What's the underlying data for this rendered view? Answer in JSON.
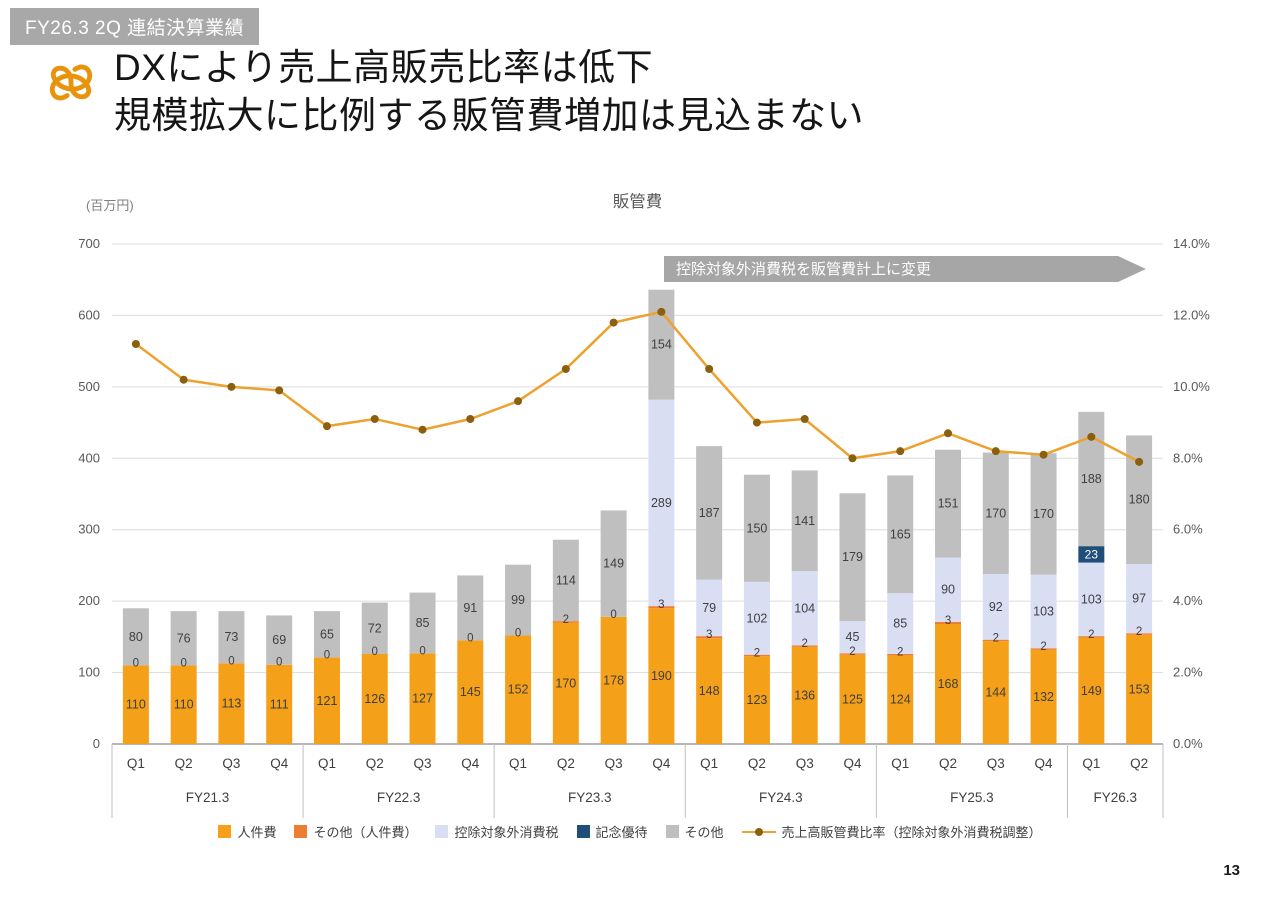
{
  "page": {
    "badge": "FY26.3 2Q 連結決算業績",
    "title_line1": "DXにより売上高販売比率は低下",
    "title_line2": "規模拡大に比例する販管費増加は見込まない",
    "page_number": "13"
  },
  "colors": {
    "hr": "#F5A019",
    "hr_other": "#ED7D31",
    "tax": "#D9DEF3",
    "gift": "#1F4E79",
    "other": "#BFBFBF",
    "line": "#EDA12F",
    "marker": "#8A5F0E",
    "annotation_bg": "#A6A6A6",
    "grid": "#DCDCDC",
    "axis_text": "#595959",
    "label_text": "#3F3F3F",
    "badge_bg": "#A8A8A8",
    "logo": "#E8930C"
  },
  "chart_data": {
    "type": "bar",
    "subtype": "stacked-bar-with-line",
    "title": "販管費",
    "unit_label": "(百万円)",
    "annotation": "控除対象外消費税を販管費計上に変更",
    "left_axis": {
      "label": "(百万円)",
      "min": 0,
      "max": 700,
      "step": 100,
      "ticks": [
        0,
        100,
        200,
        300,
        400,
        500,
        600,
        700
      ]
    },
    "right_axis": {
      "min": 0,
      "max": 14,
      "step": 2,
      "ticks": [
        "0.0%",
        "2.0%",
        "4.0%",
        "6.0%",
        "8.0%",
        "10.0%",
        "12.0%",
        "14.0%"
      ]
    },
    "groups": [
      "FY21.3",
      "FY22.3",
      "FY23.3",
      "FY24.3",
      "FY25.3",
      "FY26.3"
    ],
    "legend": [
      {
        "label": "人件費",
        "type": "swatch",
        "color": "#F5A019"
      },
      {
        "label": "その他（人件費）",
        "type": "swatch",
        "color": "#ED7D31"
      },
      {
        "label": "控除対象外消費税",
        "type": "swatch",
        "color": "#D9DEF3"
      },
      {
        "label": "記念優待",
        "type": "swatch",
        "color": "#1F4E79"
      },
      {
        "label": "その他",
        "type": "swatch",
        "color": "#BFBFBF"
      },
      {
        "label": "売上高販管費比率（控除対象外消費税調整）",
        "type": "line",
        "color": "#EDA12F",
        "marker": "#8A5F0E"
      }
    ],
    "bars": [
      {
        "group": "FY21.3",
        "q": "Q1",
        "hr": 110,
        "hr_other": 0,
        "tax": 0,
        "gift": 0,
        "other": 80,
        "small": "0"
      },
      {
        "group": "FY21.3",
        "q": "Q2",
        "hr": 110,
        "hr_other": 0,
        "tax": 0,
        "gift": 0,
        "other": 76,
        "small": "0"
      },
      {
        "group": "FY21.3",
        "q": "Q3",
        "hr": 113,
        "hr_other": 0,
        "tax": 0,
        "gift": 0,
        "other": 73,
        "small": "0"
      },
      {
        "group": "FY21.3",
        "q": "Q4",
        "hr": 111,
        "hr_other": 0,
        "tax": 0,
        "gift": 0,
        "other": 69,
        "small": "0"
      },
      {
        "group": "FY22.3",
        "q": "Q1",
        "hr": 121,
        "hr_other": 0,
        "tax": 0,
        "gift": 0,
        "other": 65,
        "small": "0"
      },
      {
        "group": "FY22.3",
        "q": "Q2",
        "hr": 126,
        "hr_other": 0,
        "tax": 0,
        "gift": 0,
        "other": 72,
        "small": "0"
      },
      {
        "group": "FY22.3",
        "q": "Q3",
        "hr": 127,
        "hr_other": 0,
        "tax": 0,
        "gift": 0,
        "other": 85,
        "small": "0"
      },
      {
        "group": "FY22.3",
        "q": "Q4",
        "hr": 145,
        "hr_other": 0,
        "tax": 0,
        "gift": 0,
        "other": 91,
        "small": "0"
      },
      {
        "group": "FY23.3",
        "q": "Q1",
        "hr": 152,
        "hr_other": 0,
        "tax": 0,
        "gift": 0,
        "other": 99,
        "small": "0"
      },
      {
        "group": "FY23.3",
        "q": "Q2",
        "hr": 170,
        "hr_other": 2,
        "tax": 0,
        "gift": 0,
        "other": 114,
        "small": "2"
      },
      {
        "group": "FY23.3",
        "q": "Q3",
        "hr": 178,
        "hr_other": 0,
        "tax": 0,
        "gift": 0,
        "other": 149,
        "small": "0"
      },
      {
        "group": "FY23.3",
        "q": "Q4",
        "hr": 190,
        "hr_other": 3,
        "tax": 289,
        "gift": 0,
        "other": 154,
        "small": "3"
      },
      {
        "group": "FY24.3",
        "q": "Q1",
        "hr": 148,
        "hr_other": 3,
        "tax": 79,
        "gift": 0,
        "other": 187,
        "small": "3"
      },
      {
        "group": "FY24.3",
        "q": "Q2",
        "hr": 123,
        "hr_other": 2,
        "tax": 102,
        "gift": 0,
        "other": 150,
        "small": "2"
      },
      {
        "group": "FY24.3",
        "q": "Q3",
        "hr": 136,
        "hr_other": 2,
        "tax": 104,
        "gift": 0,
        "other": 141,
        "small": "2"
      },
      {
        "group": "FY24.3",
        "q": "Q4",
        "hr": 125,
        "hr_other": 2,
        "tax": 45,
        "gift": 0,
        "other": 179,
        "small": "2"
      },
      {
        "group": "FY25.3",
        "q": "Q1",
        "hr": 124,
        "hr_other": 2,
        "tax": 85,
        "gift": 0,
        "other": 165,
        "small": "2"
      },
      {
        "group": "FY25.3",
        "q": "Q2",
        "hr": 168,
        "hr_other": 3,
        "tax": 90,
        "gift": 0,
        "other": 151,
        "small": "3"
      },
      {
        "group": "FY25.3",
        "q": "Q3",
        "hr": 144,
        "hr_other": 2,
        "tax": 92,
        "gift": 0,
        "other": 170,
        "small": "2"
      },
      {
        "group": "FY25.3",
        "q": "Q4",
        "hr": 132,
        "hr_other": 2,
        "tax": 103,
        "gift": 0,
        "other": 170,
        "small": "2"
      },
      {
        "group": "FY26.3",
        "q": "Q1",
        "hr": 149,
        "hr_other": 2,
        "tax": 103,
        "gift": 23,
        "other": 188,
        "small": "2"
      },
      {
        "group": "FY26.3",
        "q": "Q2",
        "hr": 153,
        "hr_other": 2,
        "tax": 97,
        "gift": 0,
        "other": 180,
        "small": "2"
      }
    ],
    "line": {
      "name": "売上高販管費比率（控除対象外消費税調整）",
      "values": [
        11.2,
        10.2,
        10.0,
        9.9,
        8.9,
        9.1,
        8.8,
        9.1,
        9.6,
        10.5,
        11.8,
        12.1,
        10.5,
        9.0,
        9.1,
        8.0,
        8.2,
        8.7,
        8.2,
        8.1,
        8.6,
        7.9
      ]
    }
  }
}
